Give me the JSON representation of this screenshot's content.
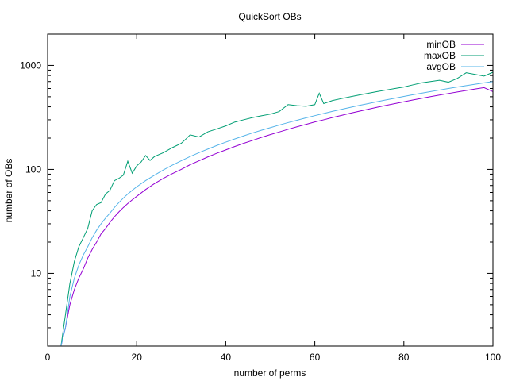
{
  "chart_data": {
    "type": "line",
    "title": "QuickSort OBs",
    "xlabel": "number of perms",
    "ylabel": "number of OBs",
    "xlim": [
      0,
      100
    ],
    "ylim": [
      2,
      2000
    ],
    "yscale": "log",
    "x_ticks": [
      0,
      20,
      40,
      60,
      80,
      100
    ],
    "y_ticks": [
      10,
      100,
      1000
    ],
    "grid": false,
    "legend_position": "top-right",
    "colors": {
      "minOB": "#9400d3",
      "maxOB": "#009e73",
      "avgOB": "#56b4e9"
    },
    "series": [
      {
        "name": "minOB",
        "x": [
          3,
          4,
          5,
          6,
          7,
          8,
          9,
          10,
          11,
          12,
          13,
          14,
          15,
          16,
          17,
          18,
          19,
          20,
          22,
          24,
          26,
          28,
          30,
          32,
          34,
          36,
          38,
          40,
          42,
          44,
          46,
          48,
          50,
          52,
          54,
          56,
          58,
          60,
          62,
          64,
          66,
          68,
          70,
          72,
          74,
          76,
          78,
          80,
          82,
          84,
          86,
          88,
          90,
          92,
          94,
          96,
          98,
          100
        ],
        "values": [
          2,
          3,
          5,
          7,
          9,
          11,
          14,
          17,
          20,
          24,
          27,
          31,
          35,
          39,
          43,
          47,
          51,
          55,
          64,
          73,
          82,
          91,
          100,
          111,
          121,
          132,
          143,
          154,
          166,
          178,
          190,
          203,
          216,
          229,
          243,
          257,
          271,
          286,
          300,
          316,
          331,
          347,
          363,
          379,
          396,
          413,
          430,
          447,
          465,
          483,
          501,
          519,
          537,
          556,
          574,
          593,
          612,
          560
        ]
      },
      {
        "name": "maxOB",
        "x": [
          3,
          4,
          5,
          6,
          7,
          8,
          9,
          10,
          11,
          12,
          13,
          14,
          15,
          16,
          17,
          18,
          19,
          20,
          21,
          22,
          23,
          24,
          26,
          28,
          30,
          31,
          32,
          34,
          36,
          38,
          40,
          42,
          44,
          46,
          48,
          50,
          52,
          54,
          56,
          58,
          60,
          61,
          62,
          64,
          66,
          68,
          70,
          72,
          74,
          76,
          78,
          80,
          82,
          84,
          86,
          88,
          90,
          92,
          94,
          96,
          98,
          100
        ],
        "values": [
          2,
          4,
          8,
          13,
          18,
          22,
          27,
          40,
          46,
          48,
          58,
          63,
          78,
          82,
          88,
          120,
          92,
          108,
          118,
          136,
          122,
          133,
          145,
          162,
          178,
          195,
          215,
          205,
          230,
          245,
          262,
          285,
          300,
          315,
          328,
          340,
          360,
          420,
          410,
          405,
          420,
          540,
          430,
          460,
          480,
          500,
          520,
          540,
          560,
          580,
          600,
          620,
          650,
          680,
          700,
          720,
          690,
          750,
          850,
          820,
          790,
          860
        ]
      },
      {
        "name": "avgOB",
        "x": [
          3,
          4,
          5,
          6,
          7,
          8,
          9,
          10,
          11,
          12,
          13,
          14,
          15,
          16,
          17,
          18,
          19,
          20,
          22,
          24,
          26,
          28,
          30,
          32,
          34,
          36,
          38,
          40,
          42,
          44,
          46,
          48,
          50,
          52,
          54,
          56,
          58,
          60,
          62,
          64,
          66,
          68,
          70,
          72,
          74,
          76,
          78,
          80,
          82,
          84,
          86,
          88,
          90,
          92,
          94,
          96,
          98,
          100
        ],
        "values": [
          2,
          3,
          6,
          9,
          12,
          15,
          18,
          22,
          26,
          30,
          34,
          38,
          43,
          48,
          53,
          58,
          63,
          68,
          78,
          88,
          99,
          110,
          121,
          133,
          145,
          157,
          170,
          183,
          196,
          210,
          224,
          238,
          252,
          267,
          282,
          297,
          313,
          329,
          345,
          362,
          378,
          395,
          413,
          430,
          448,
          466,
          484,
          503,
          522,
          541,
          560,
          580,
          600,
          620,
          640,
          660,
          680,
          700
        ]
      }
    ]
  }
}
